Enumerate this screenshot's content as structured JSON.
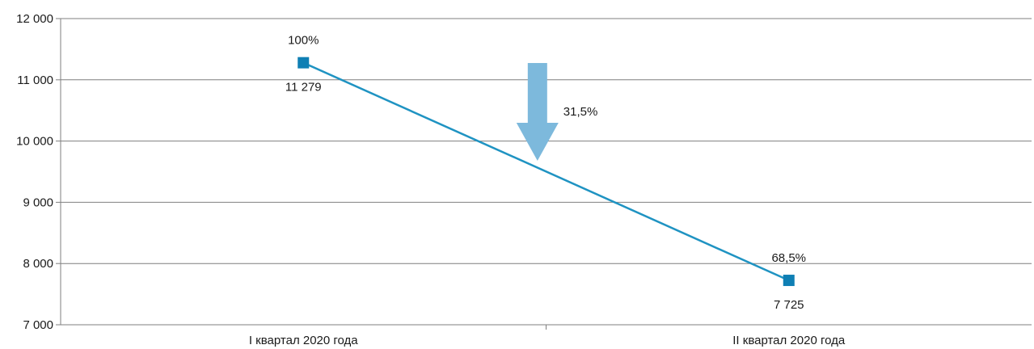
{
  "chart_data": {
    "type": "line",
    "categories": [
      "I квартал 2020 года",
      "II квартал 2020 года"
    ],
    "series": [
      {
        "values": [
          11279,
          7725
        ],
        "value_labels": [
          "11 279",
          "7 725"
        ],
        "share_labels": [
          "100%",
          "68,5%"
        ]
      }
    ],
    "y_ticks": [
      "7 000",
      "8 000",
      "9 000",
      "10 000",
      "11 000",
      "12 000"
    ],
    "ylim": [
      7000,
      12000
    ],
    "grid": true,
    "annotation": {
      "label": "31,5%",
      "arrow": "down"
    },
    "colors": {
      "line": "#1f93c2",
      "marker": "#0f7fb4",
      "arrow": "#7db9dc",
      "grid": "#7f7f7f"
    }
  }
}
